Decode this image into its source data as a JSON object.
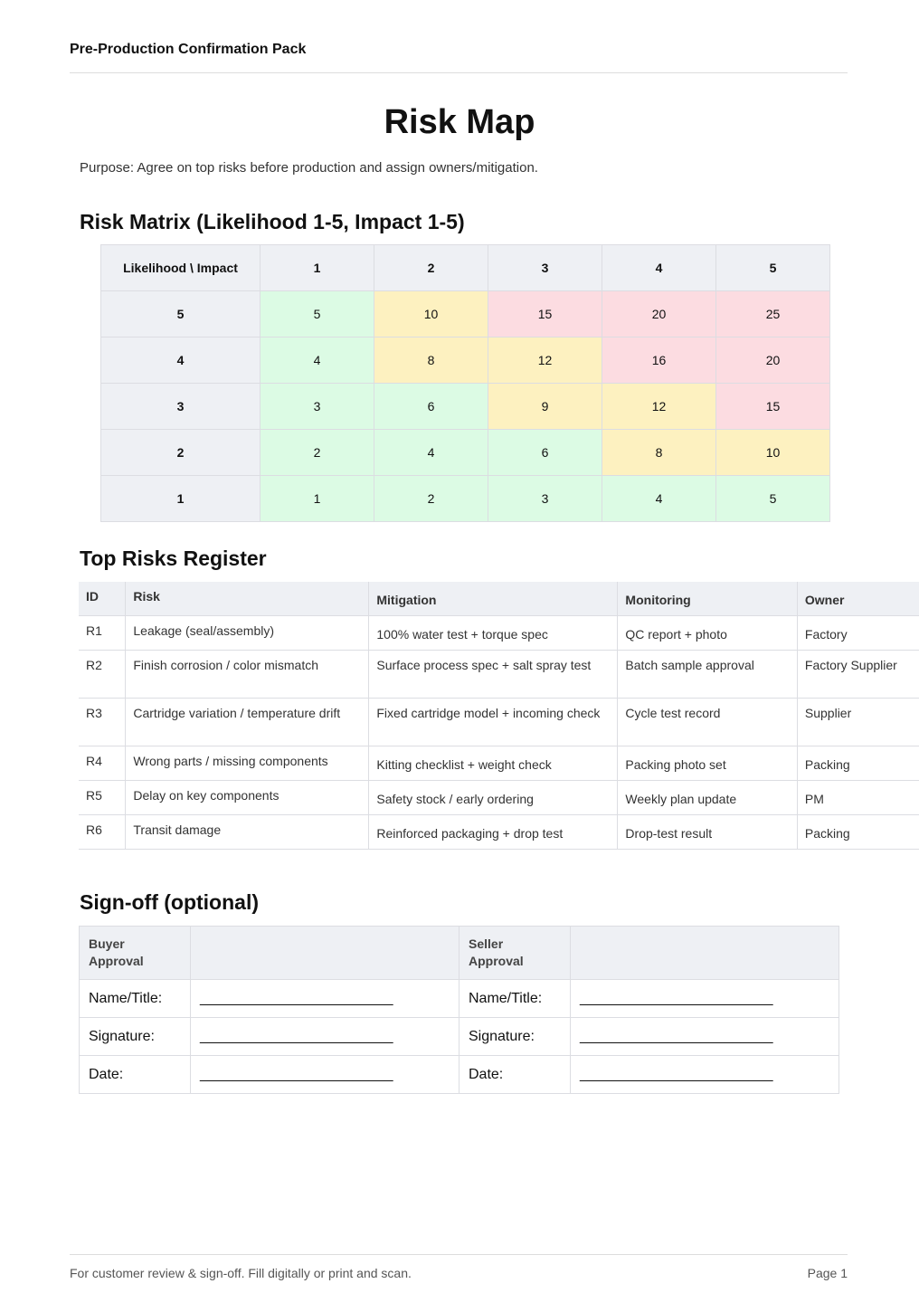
{
  "header": "Pre-Production Confirmation Pack",
  "title": "Risk Map",
  "purpose": "Purpose: Agree on top risks before production and assign owners/mitigation.",
  "matrix": {
    "heading": "Risk Matrix (Likelihood 1-5, Impact 1-5)",
    "corner": "Likelihood \\ Impact",
    "impacts": [
      "1",
      "2",
      "3",
      "4",
      "5"
    ],
    "rows": [
      {
        "l": "5",
        "v": [
          "5",
          "10",
          "15",
          "20",
          "25"
        ]
      },
      {
        "l": "4",
        "v": [
          "4",
          "8",
          "12",
          "16",
          "20"
        ]
      },
      {
        "l": "3",
        "v": [
          "3",
          "6",
          "9",
          "12",
          "15"
        ]
      },
      {
        "l": "2",
        "v": [
          "2",
          "4",
          "6",
          "8",
          "10"
        ]
      },
      {
        "l": "1",
        "v": [
          "1",
          "2",
          "3",
          "4",
          "5"
        ]
      }
    ],
    "colors": {
      "low": "#dcfbe4",
      "medium": "#fdf1c0",
      "high": "#fcdce1"
    }
  },
  "register": {
    "heading": "Top Risks Register",
    "columns": [
      "ID",
      "Risk",
      "Mitigation",
      "Monitoring",
      "Owner"
    ],
    "rows": [
      [
        "R1",
        "Leakage (seal/assembly)",
        "100% water test + torque spec",
        "QC report + photo",
        "Factory"
      ],
      [
        "R2",
        "Finish corrosion / color mismatch",
        "Surface process spec + salt spray test",
        "Batch sample approval",
        "Factory Supplier"
      ],
      [
        "R3",
        "Cartridge variation / temperature drift",
        "Fixed cartridge model + incoming check",
        "Cycle test record",
        "Supplier"
      ],
      [
        "R4",
        "Wrong parts / missing components",
        "Kitting checklist + weight check",
        "Packing photo set",
        "Packing"
      ],
      [
        "R5",
        "Delay on key components",
        "Safety stock / early ordering",
        "Weekly plan update",
        "PM"
      ],
      [
        "R6",
        "Transit damage",
        "Reinforced packaging + drop test",
        "Drop-test result",
        "Packing"
      ]
    ]
  },
  "signoff": {
    "heading": "Sign-off (optional)",
    "buyer": "Buyer Approval",
    "seller": "Seller Approval",
    "fields": [
      "Name/Title:",
      "Signature:",
      "Date:"
    ],
    "blank": "________________________"
  },
  "footer": {
    "note": "For customer review & sign-off. Fill digitally or print and scan.",
    "page": "Page 1"
  }
}
